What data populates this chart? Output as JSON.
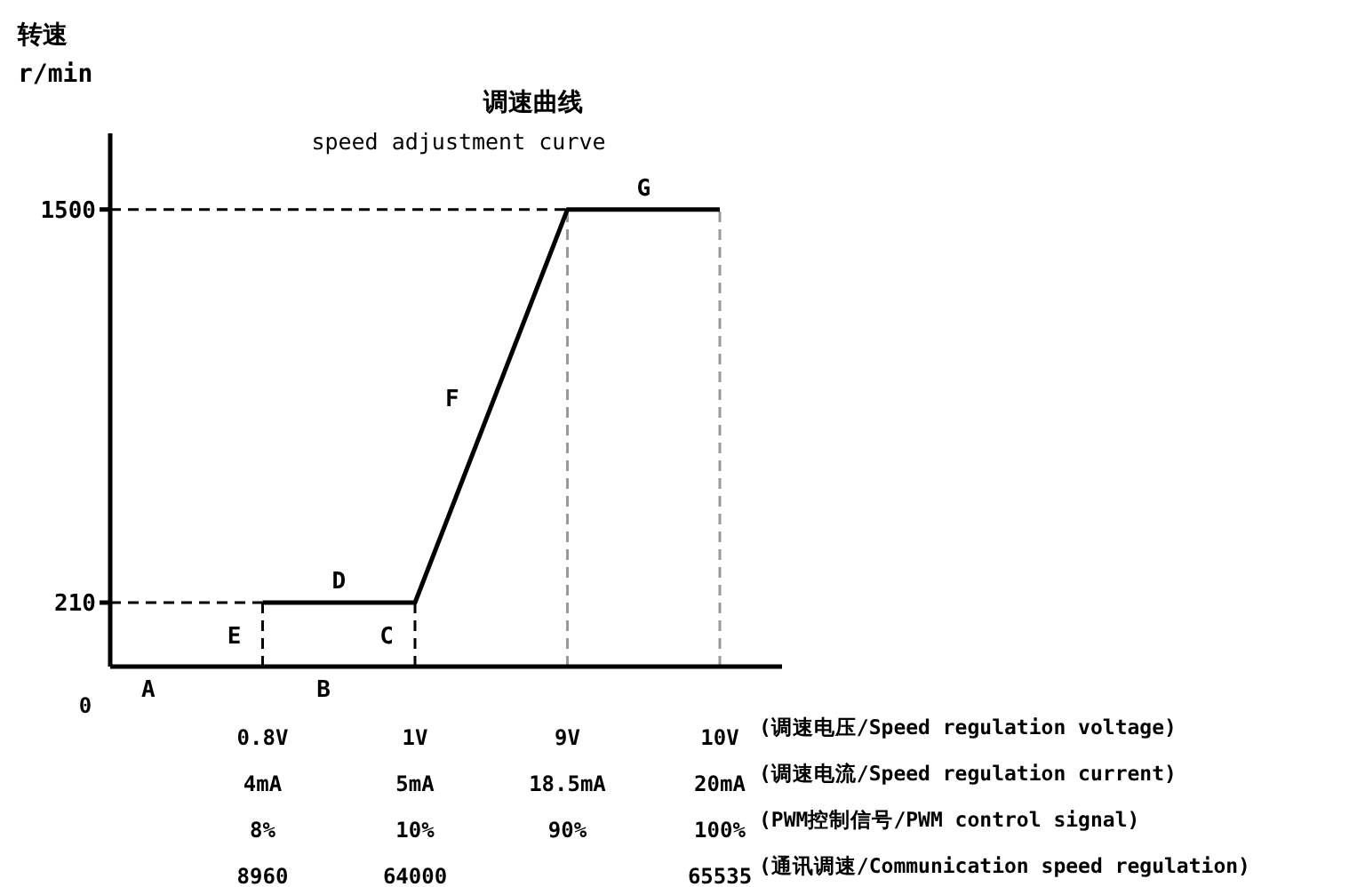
{
  "chart_data": {
    "type": "line",
    "title": "调速曲线",
    "subtitle": "speed adjustment curve",
    "ylabel": "转速\nr/min",
    "categories": [
      "0",
      "0.8V\n4mA\n8%\n8960",
      "1V\n5mA\n10%\n64000",
      "9V\n18.5mA\n90%",
      "10V\n20mA\n100%\n65535"
    ],
    "series": [
      {
        "color": "#000000",
        "values": [
          null,
          210,
          210,
          1500,
          1500
        ]
      }
    ],
    "ylim": [
      0,
      1750
    ],
    "yticks": [
      210,
      1500
    ],
    "ref_lines": [
      {
        "axis": "y",
        "value": 210,
        "color": "#000000",
        "line_style": "dashed"
      },
      {
        "axis": "y",
        "value": 1500,
        "color": "#000000",
        "line_style": "dashed"
      },
      {
        "axis": "x",
        "value": "0.8V\n4mA\n8%\n8960",
        "color": "#000000",
        "line_style": "dashed"
      },
      {
        "axis": "x",
        "value": "1V\n5mA\n10%\n64000",
        "color": "#000000",
        "line_style": "dashed"
      },
      {
        "axis": "x",
        "value": "9V\n18.5mA\n90%",
        "color": "#999999",
        "line_style": "dashed"
      },
      {
        "axis": "x",
        "value": "10V\n20mA\n100%\n65535",
        "color": "#999999",
        "line_style": "dashed"
      }
    ],
    "annotations": [
      "A",
      "B",
      "C",
      "D",
      "E",
      "F",
      "G",
      "(调速电压/Speed regulation voltage)",
      "(调速电流/Speed regulation current)",
      "(PWM控制信号/PWM control signal)",
      "(通讯调速/Communication speed regulation)"
    ],
    "grid": false,
    "legend": false,
    "marker": "none",
    "line_style": "solid"
  }
}
